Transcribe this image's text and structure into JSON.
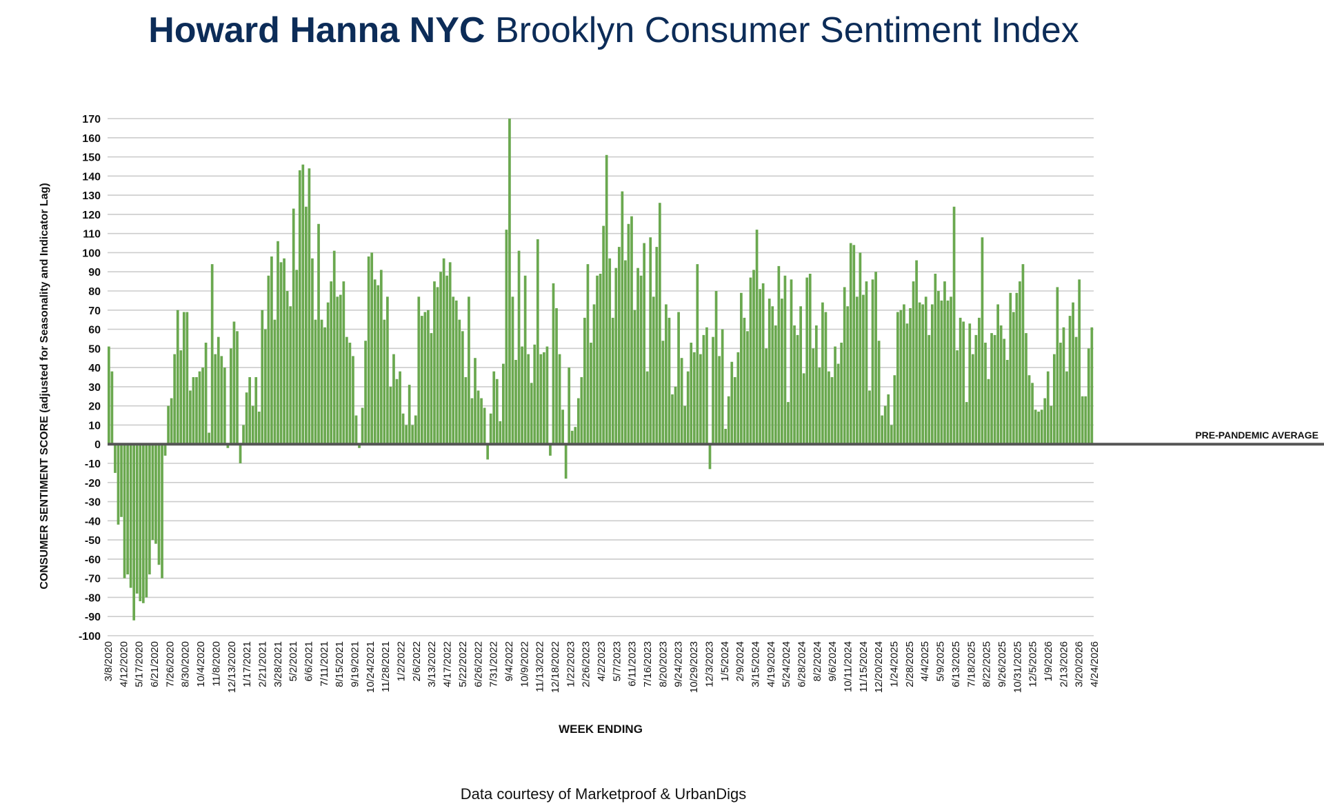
{
  "title": {
    "brand": "Howard Hanna NYC",
    "rest": "Brooklyn Consumer Sentiment Index"
  },
  "footer": "Data courtesy of Marketproof & UrbanDigs",
  "colors": {
    "bar": "#6aa84f",
    "title": "#0c2c58",
    "grid": "#cccccc",
    "zero_line": "#555555"
  },
  "chart_data": {
    "type": "bar",
    "xlabel": "WEEK ENDING",
    "ylabel": "CONSUMER SENTIMENT SCORE (adjusted for Seasonality and Indicator Lag)",
    "ylim": [
      -100,
      170
    ],
    "ytick_step": 10,
    "grid": true,
    "reference_line": {
      "label": "PRE-PANDEMIC AVERAGE",
      "value": 0
    },
    "tick_labels": [
      "3/8/2020",
      "4/12/2020",
      "5/17/2020",
      "6/21/2020",
      "7/26/2020",
      "8/30/2020",
      "10/4/2020",
      "11/8/2020",
      "12/13/2020",
      "1/17/2021",
      "2/21/2021",
      "3/28/2021",
      "5/2/2021",
      "6/6/2021",
      "7/11/2021",
      "8/15/2021",
      "9/19/2021",
      "10/24/2021",
      "11/28/2021",
      "1/2/2022",
      "2/6/2022",
      "3/13/2022",
      "4/17/2022",
      "5/22/2022",
      "6/26/2022",
      "7/31/2022",
      "9/4/2022",
      "10/9/2022",
      "11/13/2022",
      "12/18/2022",
      "1/22/2023",
      "2/26/2023",
      "4/2/2023",
      "5/7/2023",
      "6/11/2023",
      "7/16/2023",
      "8/20/2023",
      "9/24/2023",
      "10/29/2023",
      "12/3/2023",
      "1/5/2024",
      "2/9/2024",
      "3/15/2024",
      "4/19/2024",
      "5/24/2024",
      "6/28/2024",
      "8/2/2024",
      "9/6/2024",
      "10/11/2024",
      "11/15/2024",
      "12/20/2024",
      "1/24/2025",
      "2/28/2025",
      "4/4/2025",
      "5/9/2025",
      "6/13/2025",
      "7/18/2025",
      "8/22/2025",
      "9/26/2025",
      "10/31/2025",
      "12/5/2025",
      "1/9/2026",
      "2/13/2026",
      "3/20/2026",
      "4/24/2026"
    ],
    "values": [
      51,
      38,
      -15,
      -42,
      -38,
      -70,
      -68,
      -75,
      -92,
      -78,
      -82,
      -83,
      -80,
      -68,
      -50,
      -52,
      -63,
      -70,
      -6,
      20,
      24,
      47,
      70,
      49,
      69,
      69,
      28,
      35,
      35,
      38,
      40,
      53,
      6,
      94,
      47,
      56,
      46,
      40,
      -2,
      50,
      64,
      59,
      -10,
      10,
      27,
      35,
      20,
      35,
      17,
      70,
      60,
      88,
      98,
      65,
      106,
      95,
      97,
      80,
      72,
      123,
      91,
      143,
      146,
      124,
      144,
      97,
      65,
      115,
      65,
      61,
      74,
      85,
      101,
      77,
      78,
      85,
      56,
      53,
      46,
      15,
      -2,
      19,
      54,
      98,
      100,
      86,
      83,
      91,
      65,
      77,
      30,
      47,
      34,
      38,
      16,
      10,
      31,
      10,
      15,
      77,
      67,
      69,
      70,
      58,
      85,
      82,
      90,
      97,
      88,
      95,
      77,
      75,
      65,
      59,
      35,
      77,
      24,
      45,
      28,
      24,
      19,
      -8,
      16,
      38,
      34,
      12,
      42,
      112,
      170,
      77,
      44,
      101,
      51,
      88,
      47,
      32,
      52,
      107,
      47,
      48,
      51,
      -6,
      84,
      71,
      47,
      18,
      -18,
      40,
      7,
      9,
      24,
      35,
      66,
      94,
      53,
      73,
      88,
      89,
      114,
      151,
      97,
      66,
      92,
      103,
      132,
      96,
      115,
      119,
      70,
      92,
      88,
      105,
      38,
      108,
      77,
      103,
      126,
      54,
      73,
      66,
      26,
      30,
      69,
      45,
      20,
      38,
      53,
      48,
      94,
      47,
      57,
      61,
      -13,
      56,
      80,
      46,
      60,
      8,
      25,
      43,
      35,
      48,
      79,
      66,
      59,
      87,
      91,
      112,
      81,
      84,
      50,
      76,
      72,
      62,
      93,
      76,
      88,
      22,
      86,
      62,
      57,
      72,
      37,
      87,
      89,
      50,
      62,
      40,
      74,
      69,
      38,
      35,
      51,
      42,
      53,
      82,
      72,
      105,
      104,
      77,
      100,
      78,
      85,
      28,
      86,
      90,
      54,
      15,
      20,
      26,
      10,
      36,
      69,
      70,
      73,
      63,
      71,
      85,
      96,
      74,
      73,
      77,
      57,
      73,
      89,
      80,
      75,
      85,
      75,
      77,
      124,
      49,
      66,
      64,
      22,
      63,
      47,
      57,
      66,
      108,
      53,
      34,
      58,
      57,
      73,
      62,
      55,
      44,
      79,
      69,
      79,
      85,
      94,
      58,
      36,
      32,
      18,
      17,
      18,
      24,
      38,
      20,
      47,
      82,
      53,
      61,
      38,
      67,
      74,
      56,
      86,
      25,
      25,
      50,
      61
    ]
  }
}
